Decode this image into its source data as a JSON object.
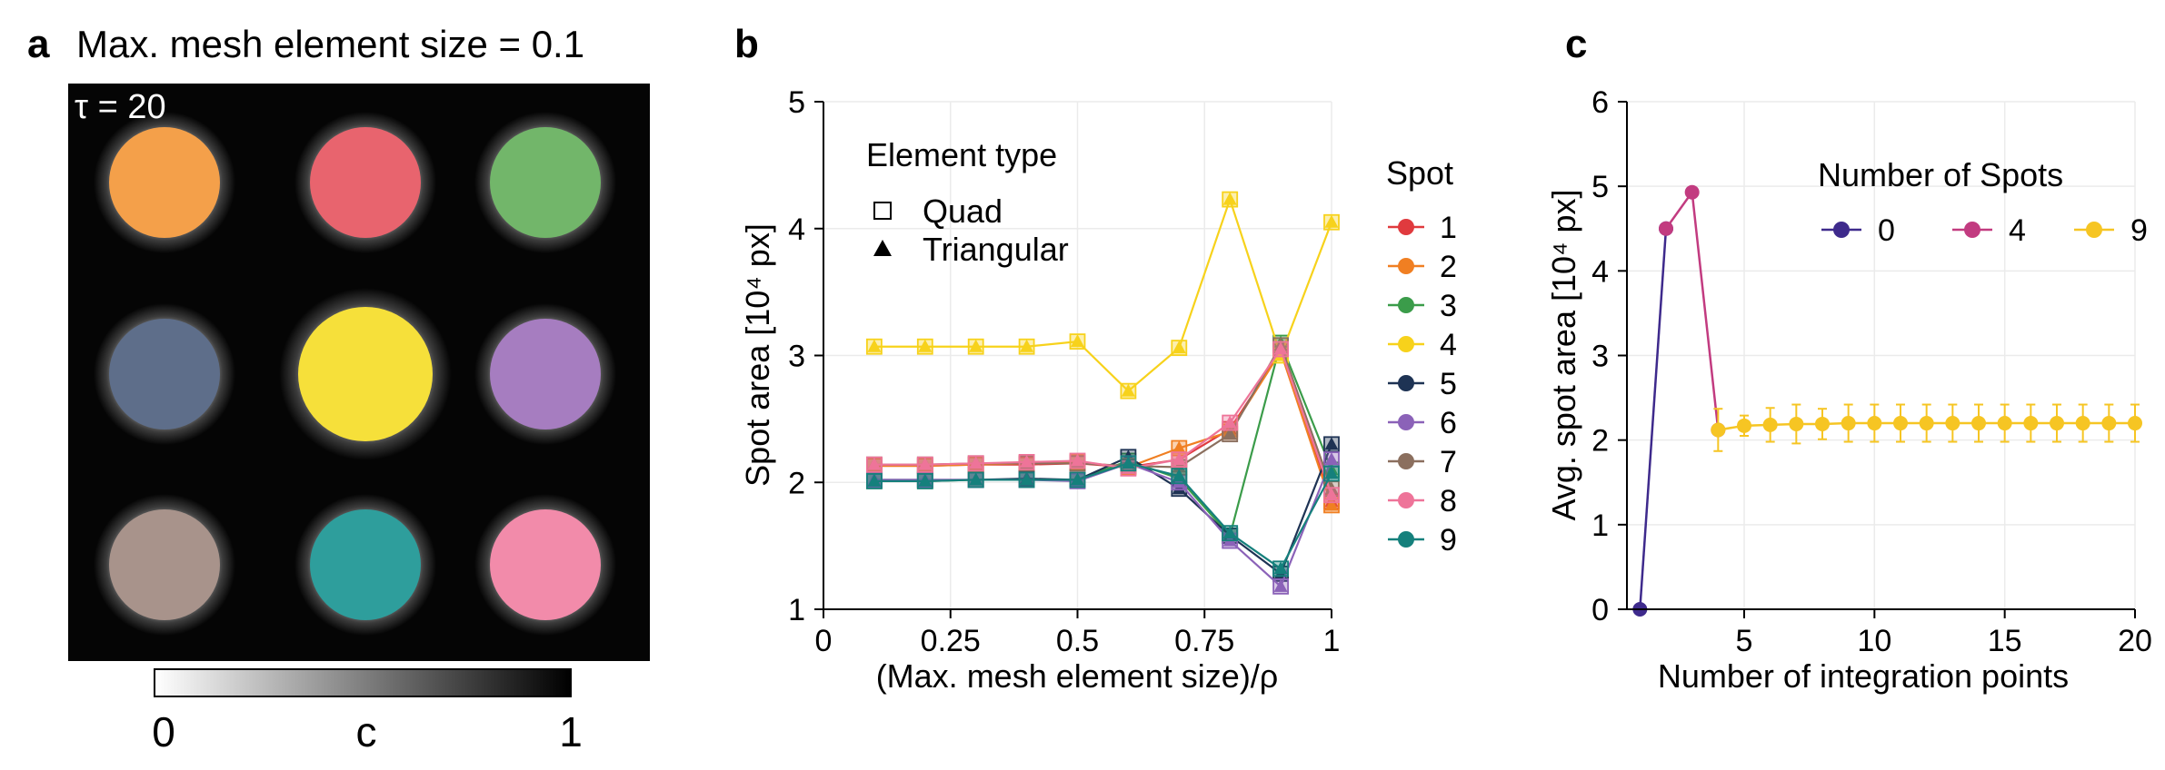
{
  "panel_a": {
    "letter": "a",
    "title": "Max. mesh element size = 0.1",
    "tau_label": "τ = 20",
    "colorbar": {
      "min_label": "0",
      "mid_label": "c",
      "max_label": "1"
    },
    "spots": [
      {
        "color": "#F4A04A"
      },
      {
        "color": "#E8646E"
      },
      {
        "color": "#72B66A"
      },
      {
        "color": "#5E6E8A"
      },
      {
        "color": "#F6E03A"
      },
      {
        "color": "#A67DC0"
      },
      {
        "color": "#A8938B"
      },
      {
        "color": "#2E9E9C"
      },
      {
        "color": "#F28BAA"
      }
    ]
  },
  "panel_b": {
    "letter": "b",
    "element_type_title": "Element type",
    "shape_legend": [
      {
        "label": "Quad",
        "shape": "square-open"
      },
      {
        "label": "Triangular",
        "shape": "triangle-filled"
      }
    ],
    "spot_legend_title": "Spot"
  },
  "panel_c": {
    "letter": "c",
    "legend_title": "Number of Spots"
  },
  "chart_data": [
    {
      "type": "line",
      "xlabel": "(Max. mesh element size)/ρ",
      "ylabel": "Spot area [10⁴ px]",
      "xlim": [
        0,
        1
      ],
      "ylim": [
        1,
        5
      ],
      "xticks": [
        {
          "value": 0,
          "label": "0"
        },
        {
          "value": 0.25,
          "label": "0.25"
        },
        {
          "value": 0.5,
          "label": "0.5"
        },
        {
          "value": 0.75,
          "label": "0.75"
        },
        {
          "value": 1,
          "label": "1"
        }
      ],
      "yticks": [
        {
          "value": 1,
          "label": "1"
        },
        {
          "value": 2,
          "label": "2"
        },
        {
          "value": 3,
          "label": "3"
        },
        {
          "value": 4,
          "label": "4"
        },
        {
          "value": 5,
          "label": "5"
        }
      ],
      "grid": true,
      "x": [
        0.1,
        0.2,
        0.3,
        0.4,
        0.5,
        0.6,
        0.7,
        0.8,
        0.9,
        1.0
      ],
      "series": [
        {
          "name": "1",
          "color": "#E03A3E",
          "values": [
            2.13,
            2.13,
            2.14,
            2.14,
            2.15,
            2.12,
            2.18,
            2.42,
            3.03,
            1.85
          ]
        },
        {
          "name": "2",
          "color": "#F07F22",
          "values": [
            2.13,
            2.13,
            2.14,
            2.15,
            2.16,
            2.12,
            2.27,
            2.4,
            3.03,
            1.82
          ]
        },
        {
          "name": "3",
          "color": "#3B9C4A",
          "values": [
            2.01,
            2.01,
            2.02,
            2.02,
            2.02,
            2.17,
            2.03,
            1.58,
            3.1,
            2.1
          ]
        },
        {
          "name": "4",
          "color": "#F7D21B",
          "values": [
            3.07,
            3.07,
            3.07,
            3.07,
            3.11,
            2.72,
            3.06,
            4.23,
            3.0,
            4.05
          ]
        },
        {
          "name": "5",
          "color": "#1E3354",
          "values": [
            2.02,
            2.02,
            2.02,
            2.03,
            2.02,
            2.2,
            1.95,
            1.58,
            1.28,
            2.3
          ]
        },
        {
          "name": "6",
          "color": "#8B62B8",
          "values": [
            2.02,
            2.02,
            2.02,
            2.02,
            2.01,
            2.15,
            2.0,
            1.54,
            1.18,
            2.18
          ]
        },
        {
          "name": "7",
          "color": "#8B6F5E",
          "values": [
            2.14,
            2.14,
            2.15,
            2.15,
            2.15,
            2.13,
            2.12,
            2.38,
            3.08,
            1.95
          ]
        },
        {
          "name": "8",
          "color": "#EE7499",
          "values": [
            2.14,
            2.14,
            2.15,
            2.16,
            2.17,
            2.11,
            2.18,
            2.47,
            3.05,
            1.9
          ]
        },
        {
          "name": "9",
          "color": "#15807C",
          "values": [
            2.01,
            2.01,
            2.02,
            2.02,
            2.02,
            2.15,
            2.05,
            1.6,
            1.32,
            2.07
          ]
        }
      ]
    },
    {
      "type": "line",
      "xlabel": "Number of integration points",
      "ylabel": "Avg. spot area [10⁴ px]",
      "xlim": [
        0.5,
        20
      ],
      "ylim": [
        0,
        6
      ],
      "xticks": [
        {
          "value": 5,
          "label": "5"
        },
        {
          "value": 10,
          "label": "10"
        },
        {
          "value": 15,
          "label": "15"
        },
        {
          "value": 20,
          "label": "20"
        }
      ],
      "yticks": [
        {
          "value": 0,
          "label": "0"
        },
        {
          "value": 1,
          "label": "1"
        },
        {
          "value": 2,
          "label": "2"
        },
        {
          "value": 3,
          "label": "3"
        },
        {
          "value": 4,
          "label": "4"
        },
        {
          "value": 5,
          "label": "5"
        },
        {
          "value": 6,
          "label": "6"
        }
      ],
      "grid": true,
      "legend_position": "top-right",
      "series": [
        {
          "name": "0",
          "color": "#3E2A8C",
          "x": [
            1,
            2
          ],
          "values": [
            0,
            4.5
          ],
          "error": [
            0,
            0
          ]
        },
        {
          "name": "4",
          "color": "#C23B80",
          "x": [
            2,
            3,
            4
          ],
          "values": [
            4.5,
            4.93,
            2.12
          ],
          "error": [
            0,
            0,
            0
          ]
        },
        {
          "name": "9",
          "color": "#F6C523",
          "x": [
            4,
            5,
            6,
            7,
            8,
            9,
            10,
            11,
            12,
            13,
            14,
            15,
            16,
            17,
            18,
            19,
            20
          ],
          "values": [
            2.12,
            2.17,
            2.18,
            2.19,
            2.19,
            2.2,
            2.2,
            2.2,
            2.2,
            2.2,
            2.2,
            2.2,
            2.2,
            2.2,
            2.2,
            2.2,
            2.2
          ],
          "error": [
            0.25,
            0.12,
            0.2,
            0.23,
            0.18,
            0.22,
            0.22,
            0.22,
            0.22,
            0.22,
            0.22,
            0.22,
            0.22,
            0.22,
            0.22,
            0.22,
            0.22
          ]
        }
      ]
    }
  ]
}
